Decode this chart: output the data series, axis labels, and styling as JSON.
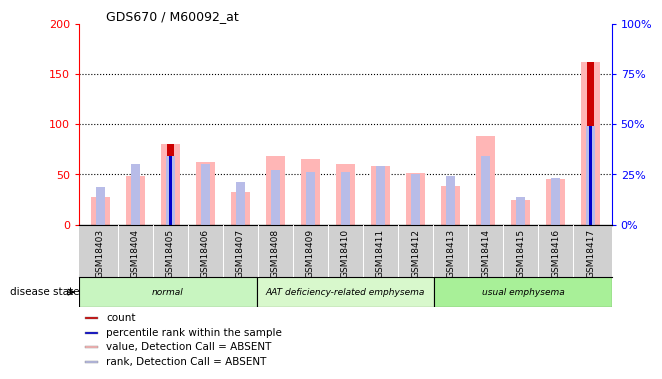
{
  "title": "GDS670 / M60092_at",
  "samples": [
    "GSM18403",
    "GSM18404",
    "GSM18405",
    "GSM18406",
    "GSM18407",
    "GSM18408",
    "GSM18409",
    "GSM18410",
    "GSM18411",
    "GSM18412",
    "GSM18413",
    "GSM18414",
    "GSM18415",
    "GSM18416",
    "GSM18417"
  ],
  "value_absent": [
    28,
    48,
    80,
    62,
    33,
    68,
    65,
    60,
    58,
    51,
    39,
    88,
    25,
    45,
    162
  ],
  "rank_absent": [
    19,
    30,
    34,
    30,
    21,
    27,
    26,
    26,
    29,
    25,
    24,
    34,
    14,
    23,
    49
  ],
  "count_bars_idx": [
    2,
    14
  ],
  "count_bars_val": [
    80,
    162
  ],
  "percentile_bars_idx": [
    2,
    14
  ],
  "percentile_bars_val": [
    34,
    49
  ],
  "group_defs": [
    {
      "label": "normal",
      "start": 0,
      "end": 5,
      "color": "#c8f5c0"
    },
    {
      "label": "AAT deficiency-related emphysema",
      "start": 5,
      "end": 10,
      "color": "#d8f8cc"
    },
    {
      "label": "usual emphysema",
      "start": 10,
      "end": 15,
      "color": "#a8f098"
    }
  ],
  "ylim_left": [
    0,
    200
  ],
  "ylim_right": [
    0,
    100
  ],
  "yticks_left": [
    0,
    50,
    100,
    150,
    200
  ],
  "yticks_right": [
    0,
    25,
    50,
    75,
    100
  ],
  "color_count": "#cc0000",
  "color_percentile": "#0000cc",
  "color_value_absent": "#ffb6b6",
  "color_rank_absent": "#b8bce8",
  "legend_items": [
    [
      "#cc0000",
      "count"
    ],
    [
      "#0000cc",
      "percentile rank within the sample"
    ],
    [
      "#ffb6b6",
      "value, Detection Call = ABSENT"
    ],
    [
      "#b8bce8",
      "rank, Detection Call = ABSENT"
    ]
  ]
}
